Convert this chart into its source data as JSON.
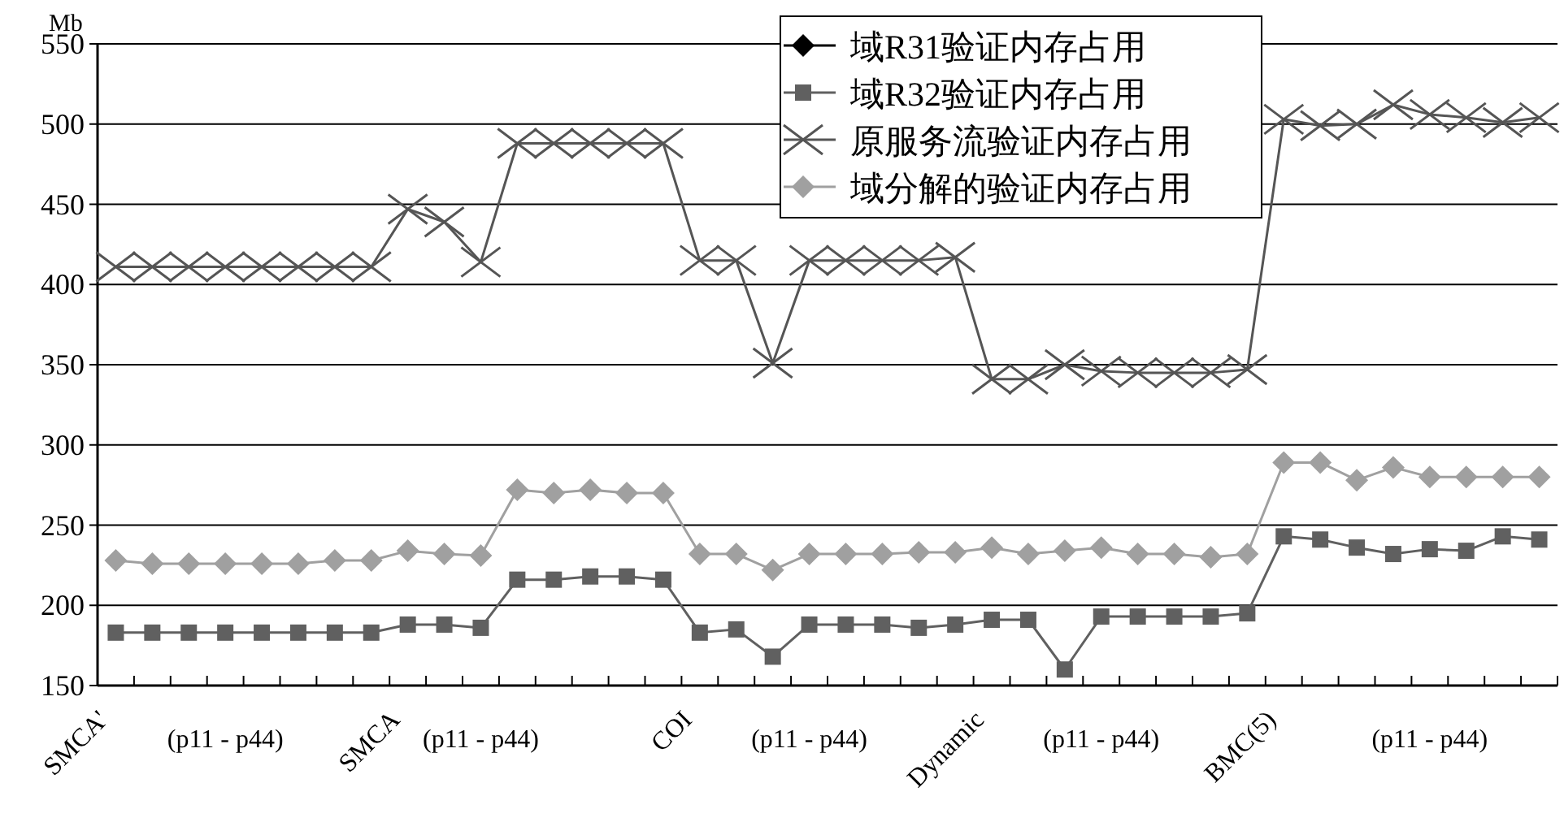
{
  "chart_data": {
    "type": "line",
    "ylabel": "Mb",
    "categories": [
      "SMCA'",
      null,
      null,
      "(p11 - p44)",
      null,
      null,
      null,
      null,
      "SMCA",
      null,
      "(p11 - p44)",
      null,
      null,
      null,
      null,
      null,
      "COI",
      null,
      null,
      "(p11 - p44)",
      null,
      null,
      null,
      null,
      "Dynamic",
      null,
      null,
      "(p11 - p44)",
      null,
      null,
      null,
      null,
      "BMC(5)",
      null,
      null,
      null,
      "(p11 - p44)",
      null,
      null,
      null
    ],
    "series": [
      {
        "name": "域R31验证内存占用",
        "color": "#000000",
        "marker": "diamond",
        "values": [
          null,
          null,
          null,
          null,
          null,
          null,
          null,
          null,
          null,
          null,
          null,
          null,
          null,
          null,
          null,
          null,
          null,
          null,
          null,
          null,
          null,
          null,
          null,
          null,
          null,
          null,
          null,
          null,
          null,
          null,
          null,
          null,
          null,
          null,
          null,
          null,
          null,
          null,
          null,
          null
        ]
      },
      {
        "name": "域R32验证内存占用",
        "color": "#606060",
        "marker": "square",
        "values": [
          183,
          183,
          183,
          183,
          183,
          183,
          183,
          183,
          188,
          188,
          186,
          216,
          216,
          218,
          218,
          216,
          183,
          185,
          168,
          188,
          188,
          188,
          186,
          188,
          191,
          191,
          160,
          193,
          193,
          193,
          193,
          195,
          243,
          241,
          236,
          232,
          235,
          234,
          243,
          241
        ]
      },
      {
        "name": "原服务流验证内存占用",
        "color": "#555555",
        "marker": "cross",
        "values": [
          411,
          411,
          411,
          411,
          411,
          411,
          411,
          411,
          447,
          439,
          414,
          488,
          488,
          488,
          488,
          488,
          415,
          415,
          351,
          415,
          415,
          415,
          415,
          417,
          341,
          341,
          350,
          346,
          345,
          345,
          345,
          347,
          503,
          499,
          500,
          512,
          506,
          504,
          501,
          504
        ]
      },
      {
        "name": "域分解的验证内存占用",
        "color": "#a0a0a0",
        "marker": "diamond",
        "values": [
          228,
          226,
          226,
          226,
          226,
          226,
          228,
          228,
          234,
          232,
          231,
          272,
          270,
          272,
          270,
          270,
          232,
          232,
          222,
          232,
          232,
          232,
          233,
          233,
          236,
          232,
          234,
          236,
          232,
          232,
          230,
          232,
          289,
          289,
          278,
          286,
          280,
          280,
          280,
          280
        ]
      }
    ],
    "ylim": [
      150,
      550
    ],
    "yticks": [
      150,
      200,
      250,
      300,
      350,
      400,
      450,
      500,
      550
    ],
    "grid": "y",
    "legend": "top right"
  }
}
